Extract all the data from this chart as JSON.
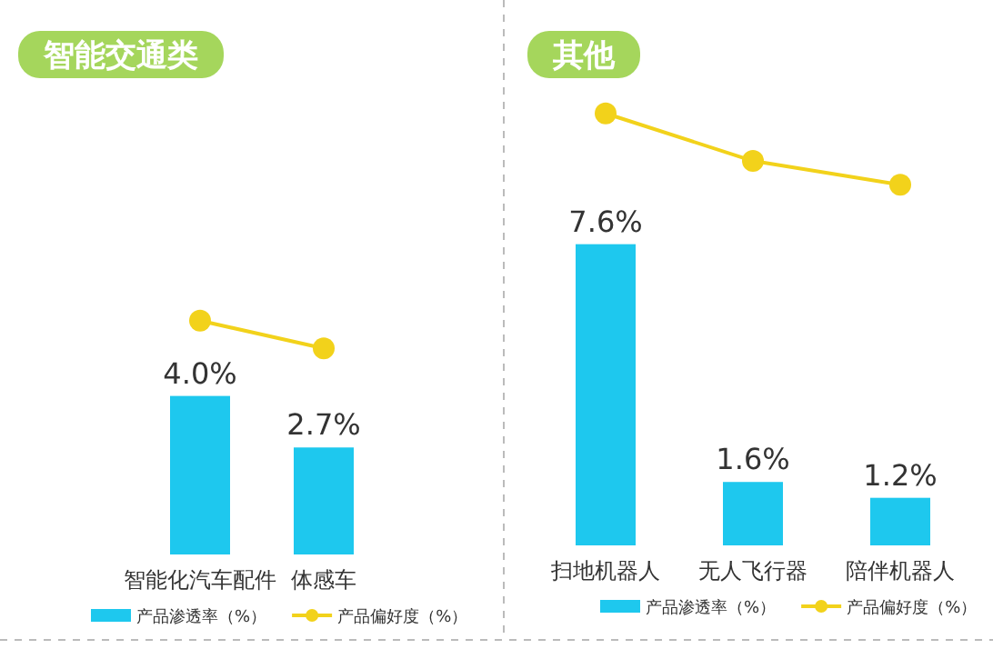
{
  "chart_data": [
    {
      "type": "bar",
      "title": "智能交通类",
      "categories": [
        "智能化汽车配件",
        "体感车"
      ],
      "legend": "bottom",
      "series": [
        {
          "name": "产品渗透率（%）",
          "color": "#1ec8ee",
          "values": [
            4.0,
            2.7
          ],
          "value_labels": [
            "4.0%",
            "2.7%"
          ]
        },
        {
          "type": "line",
          "name": "产品偏好度（%）",
          "color": "#f2d21b",
          "marker": "circle",
          "values": [
            5.9,
            5.2
          ]
        }
      ]
    },
    {
      "type": "bar",
      "title": "其他",
      "categories": [
        "扫地机器人",
        "无人飞行器",
        "陪伴机器人"
      ],
      "legend": "bottom",
      "series": [
        {
          "name": "产品渗透率（%）",
          "color": "#1ec8ee",
          "values": [
            7.6,
            1.6,
            1.2
          ],
          "value_labels": [
            "7.6%",
            "1.6%",
            "1.2%"
          ]
        },
        {
          "type": "line",
          "name": "产品偏好度（%）",
          "color": "#f2d21b",
          "marker": "circle",
          "values": [
            10.9,
            9.7,
            9.1
          ]
        }
      ]
    }
  ]
}
